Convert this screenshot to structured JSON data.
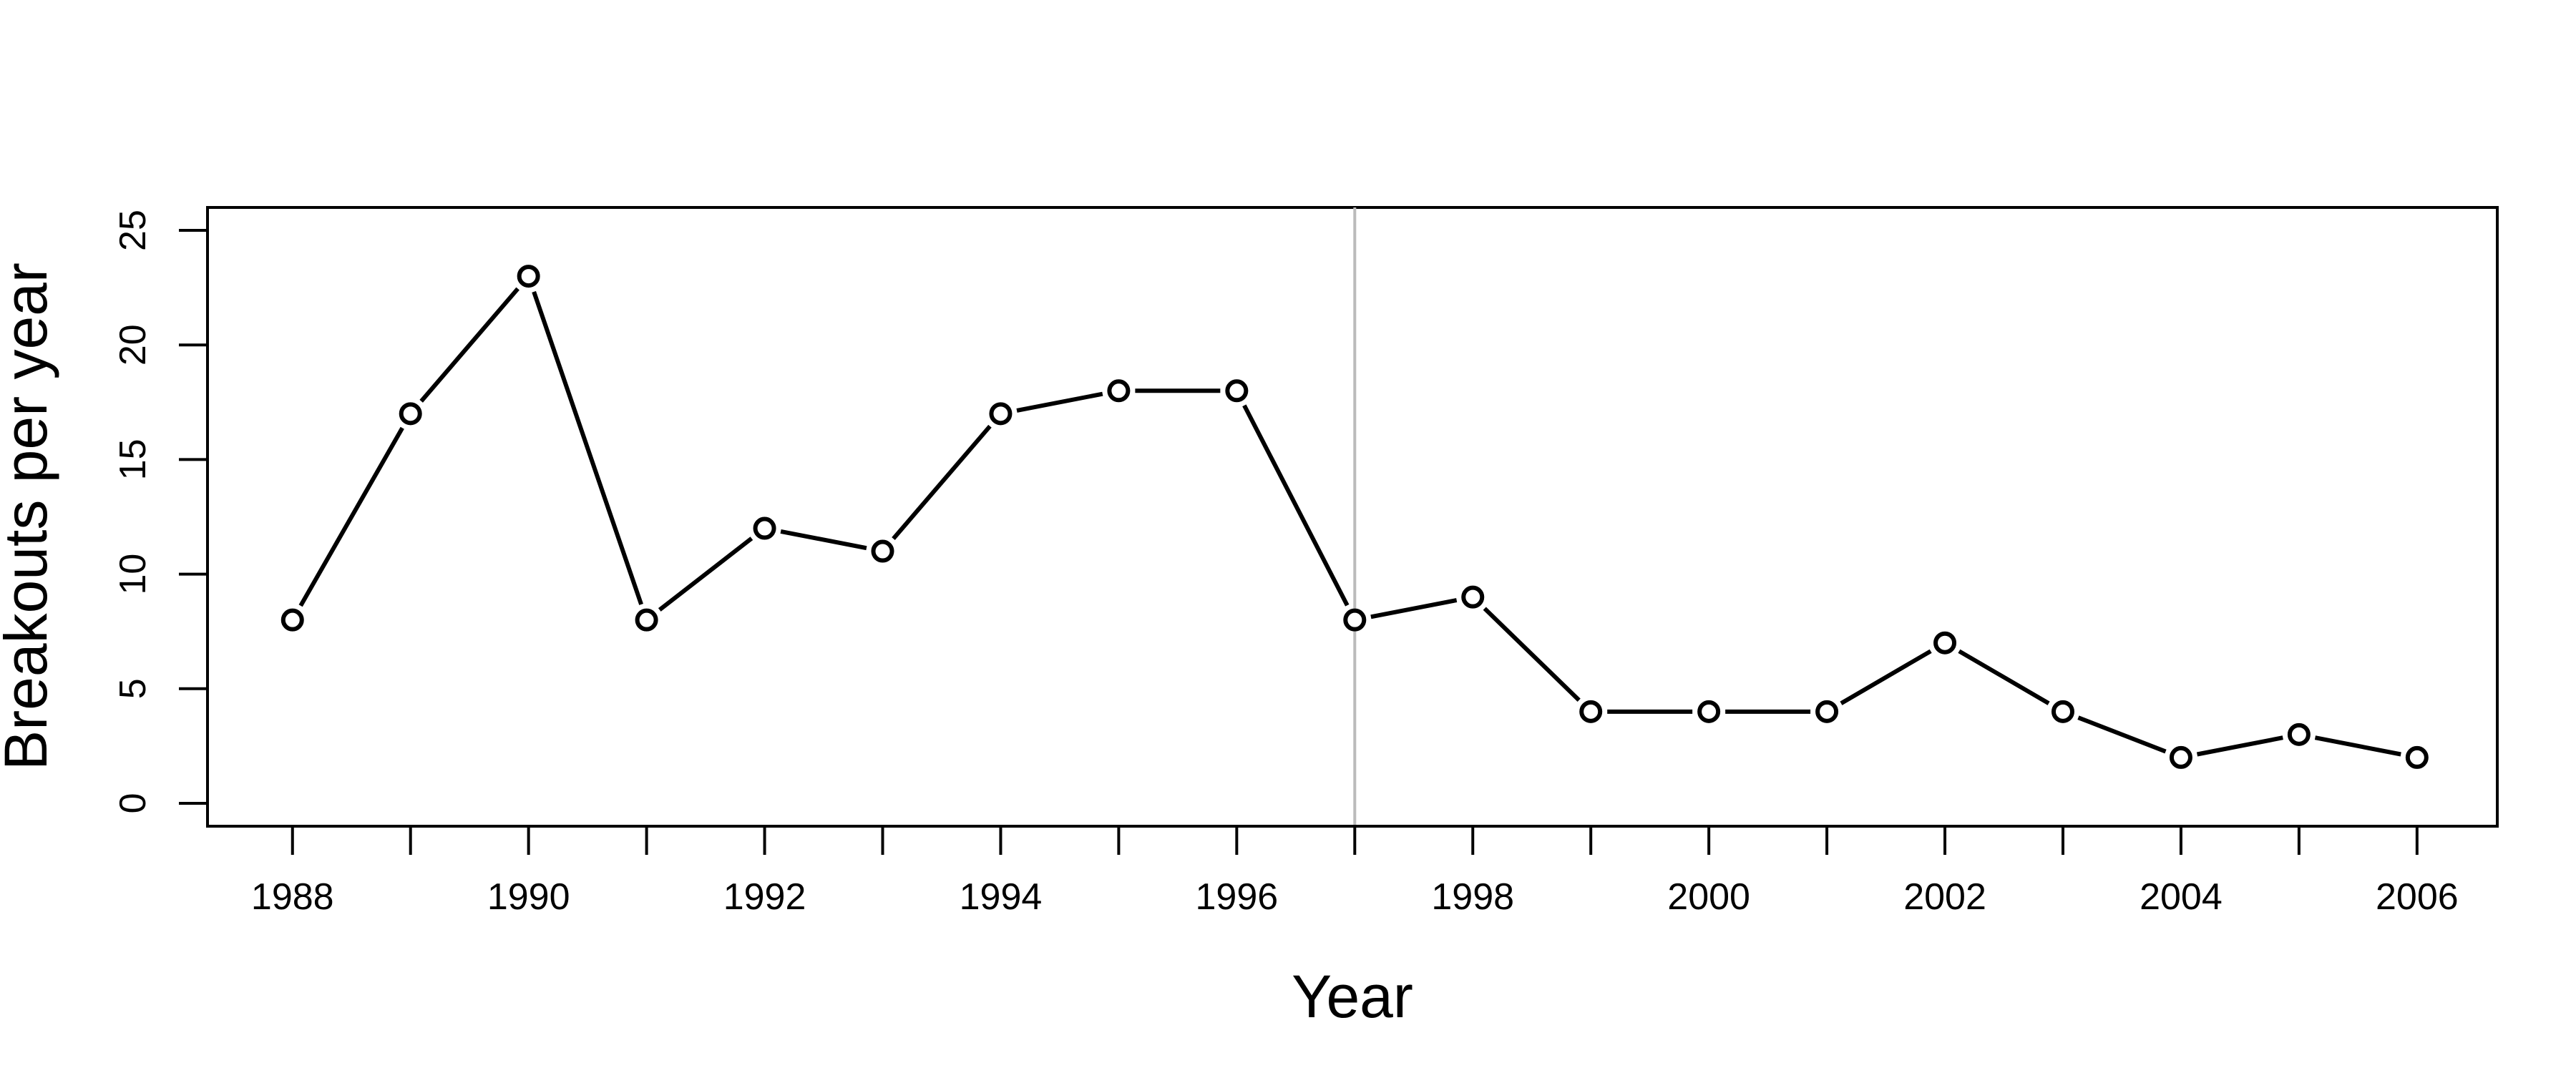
{
  "chart_data": {
    "type": "line",
    "title": "",
    "xlabel": "Year",
    "ylabel": "Breakouts per year",
    "x": [
      1988,
      1989,
      1990,
      1991,
      1992,
      1993,
      1994,
      1995,
      1996,
      1997,
      1998,
      1999,
      2000,
      2001,
      2002,
      2003,
      2004,
      2005,
      2006
    ],
    "series": [
      {
        "values": [
          8,
          17,
          23,
          8,
          12,
          11,
          17,
          18,
          18,
          8,
          9,
          4,
          4,
          4,
          7,
          4,
          2,
          3,
          2
        ]
      }
    ],
    "xlim": [
      1987.28,
      2006.68
    ],
    "ylim": [
      -1,
      26
    ],
    "x_tick_marks": [
      1988,
      1989,
      1990,
      1991,
      1992,
      1993,
      1994,
      1995,
      1996,
      1997,
      1998,
      1999,
      2000,
      2001,
      2002,
      2003,
      2004,
      2005,
      2006
    ],
    "x_tick_labels": [
      "1988",
      "1990",
      "1992",
      "1994",
      "1996",
      "1998",
      "2000",
      "2002",
      "2004",
      "2006"
    ],
    "y_ticks": [
      0,
      5,
      10,
      15,
      20,
      25
    ],
    "y_tick_labels": [
      "0",
      "5",
      "10",
      "15",
      "20",
      "25"
    ],
    "reference_line_x": 1997,
    "marker": "open-circle",
    "grid": false,
    "legend": "none",
    "line_color": "#000000",
    "reference_line_color": "#bbbbbb"
  }
}
